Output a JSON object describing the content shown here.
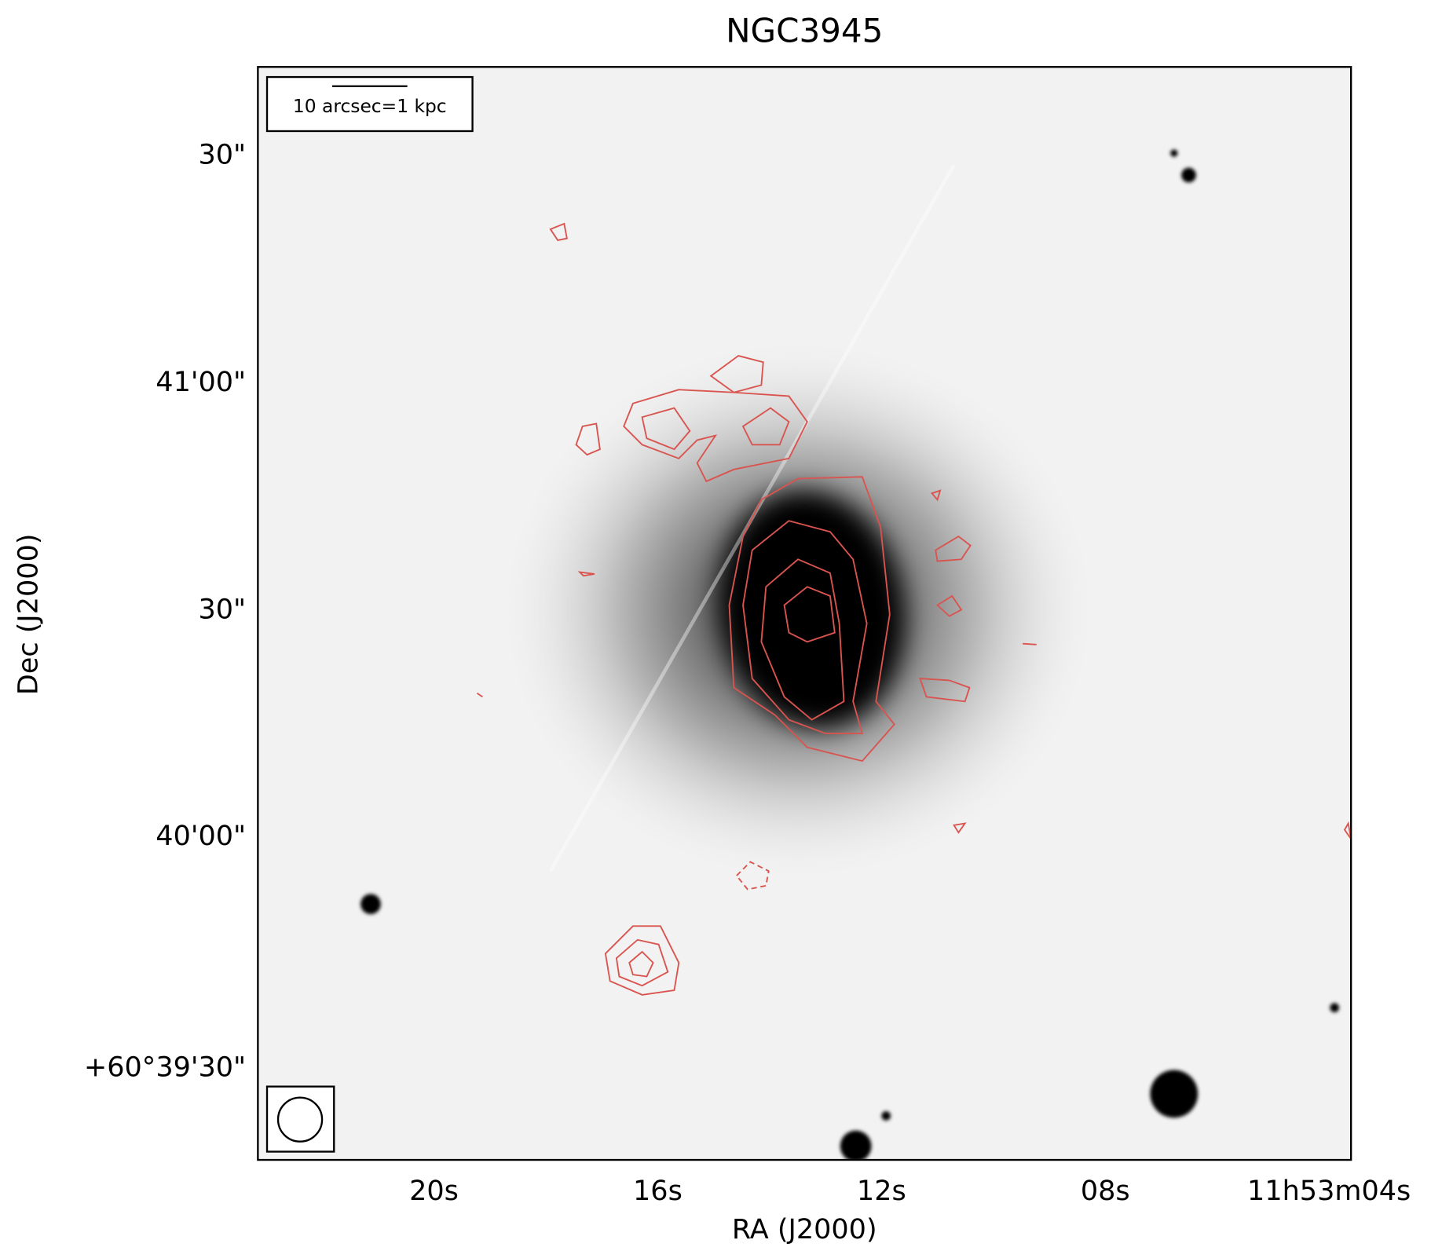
{
  "title": "NGC3945",
  "x_axis": {
    "label": "RA (J2000)",
    "ticks": [
      "20s",
      "16s",
      "12s",
      "08s",
      "11h53m04s"
    ]
  },
  "y_axis": {
    "label": "Dec (J2000)",
    "ticks": [
      "+60°39'30\"",
      "40'00\"",
      "30\"",
      "41'00\"",
      "30\""
    ]
  },
  "scale_bar": {
    "label": "10 arcsec=1 kpc"
  }
}
